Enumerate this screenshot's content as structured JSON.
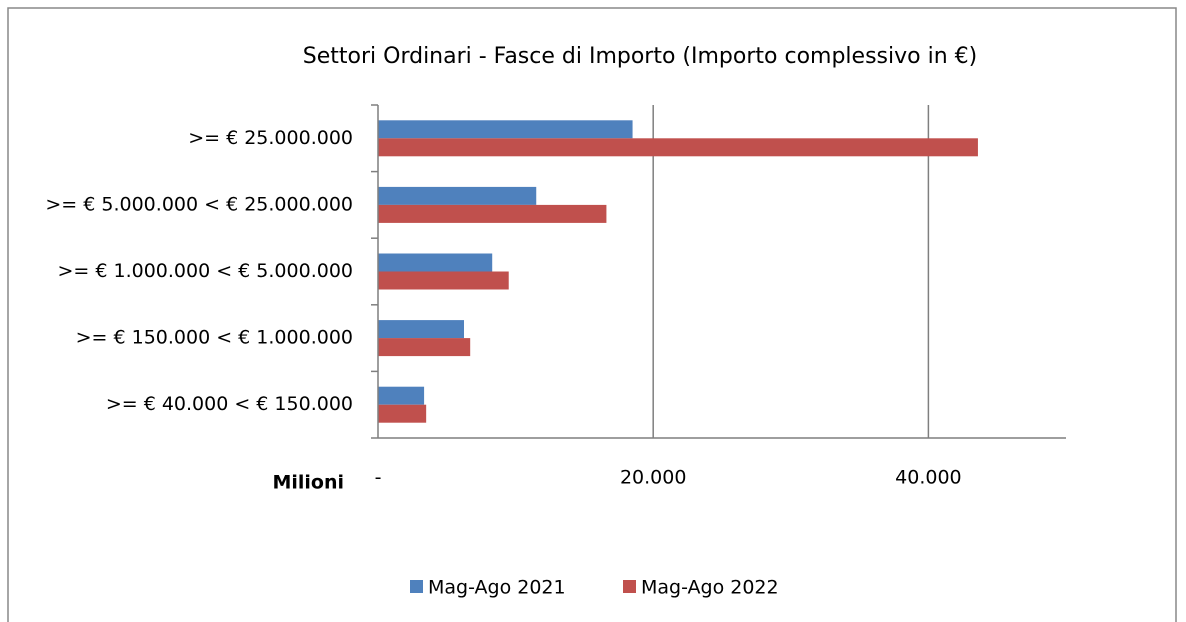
{
  "chart_data": {
    "type": "bar",
    "orientation": "horizontal",
    "title": "Settori Ordinari - Fasce di Importo (Importo complessivo in €)",
    "x_label": "Milioni",
    "categories": [
      ">= € 25.000.000",
      ">= € 5.000.000 < € 25.000.000",
      ">= € 1.000.000 < € 5.000.000",
      ">= € 150.000 < € 1.000.000",
      ">= € 40.000 < € 150.000"
    ],
    "series": [
      {
        "name": "Mag-Ago 2021",
        "color": "#4f81bd",
        "values": [
          18500,
          11500,
          8300,
          6250,
          3350
        ]
      },
      {
        "name": "Mag-Ago 2022",
        "color": "#c0504d",
        "values": [
          43600,
          16600,
          9500,
          6700,
          3500
        ]
      }
    ],
    "xlim": [
      0,
      50000
    ],
    "xticks": [
      {
        "value": 0,
        "label": "-"
      },
      {
        "value": 20000,
        "label": "20.000"
      },
      {
        "value": 40000,
        "label": "40.000"
      }
    ],
    "grid": true,
    "legend": "bottom"
  }
}
